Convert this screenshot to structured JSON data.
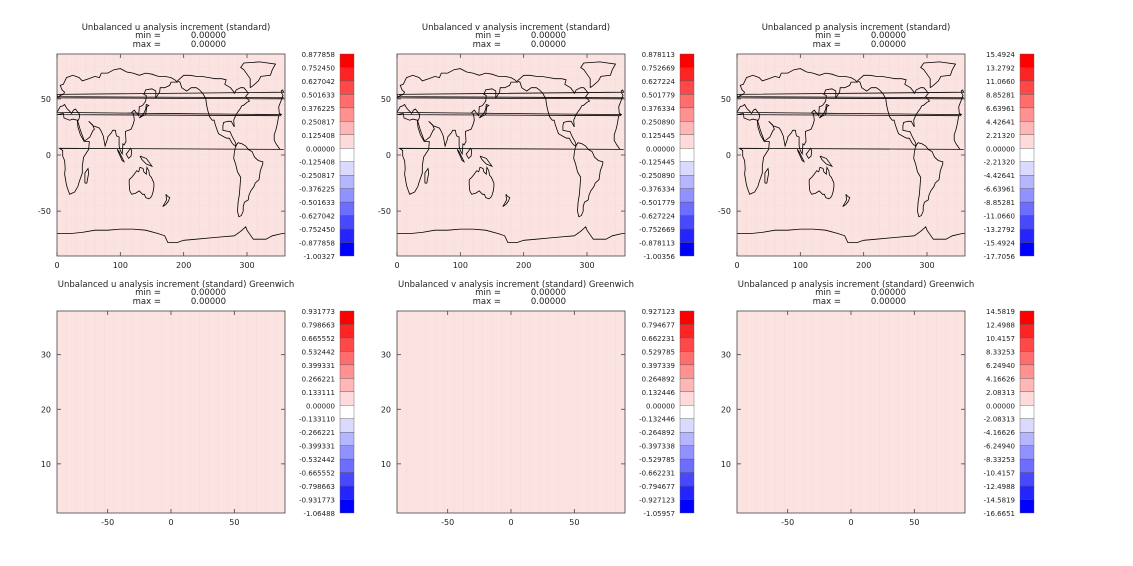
{
  "chart_data": [
    {
      "type": "heatmap",
      "title": "Unbalanced u analysis increment (standard)",
      "stats": {
        "min_label": "min =",
        "min_value": "0.00000",
        "max_label": "max =",
        "max_value": "0.00000"
      },
      "xlim": [
        0,
        360
      ],
      "ylim": [
        -90,
        90
      ],
      "xticks": [
        "0",
        "100",
        "200",
        "300"
      ],
      "xtick_values": [
        0,
        100,
        200,
        300
      ],
      "yticks": [
        "-50",
        "0",
        "50"
      ],
      "ytick_values": [
        -50,
        0,
        50
      ],
      "map": "world-coastlines",
      "fill_color": "#fbe3e1",
      "colorbar": [
        "0.877858",
        "0.752450",
        "0.627042",
        "0.501633",
        "0.376225",
        "0.250817",
        "0.125408",
        "0.00000",
        "-0.125408",
        "-0.250817",
        "-0.376225",
        "-0.501633",
        "-0.627042",
        "-0.752450",
        "-0.877858",
        "-1.00327"
      ]
    },
    {
      "type": "heatmap",
      "title": "Unbalanced v analysis increment (standard)",
      "stats": {
        "min_label": "min =",
        "min_value": "0.00000",
        "max_label": "max =",
        "max_value": "0.00000"
      },
      "xlim": [
        0,
        360
      ],
      "ylim": [
        -90,
        90
      ],
      "xticks": [
        "0",
        "100",
        "200",
        "300"
      ],
      "xtick_values": [
        0,
        100,
        200,
        300
      ],
      "yticks": [
        "-50",
        "0",
        "50"
      ],
      "ytick_values": [
        -50,
        0,
        50
      ],
      "map": "world-coastlines",
      "fill_color": "#fbe3e1",
      "colorbar": [
        "0.878113",
        "0.752669",
        "0.627224",
        "0.501779",
        "0.376334",
        "0.250890",
        "0.125445",
        "0.00000",
        "-0.125445",
        "-0.250890",
        "-0.376334",
        "-0.501779",
        "-0.627224",
        "-0.752669",
        "-0.878113",
        "-1.00356"
      ]
    },
    {
      "type": "heatmap",
      "title": "Unbalanced p analysis increment (standard)",
      "stats": {
        "min_label": "min =",
        "min_value": "0.00000",
        "max_label": "max =",
        "max_value": "0.00000"
      },
      "xlim": [
        0,
        360
      ],
      "ylim": [
        -90,
        90
      ],
      "xticks": [
        "0",
        "100",
        "200",
        "300"
      ],
      "xtick_values": [
        0,
        100,
        200,
        300
      ],
      "yticks": [
        "-50",
        "0",
        "50"
      ],
      "ytick_values": [
        -50,
        0,
        50
      ],
      "map": "world-coastlines",
      "fill_color": "#fbe3e1",
      "colorbar": [
        "15.4924",
        "13.2792",
        "11.0660",
        "8.85281",
        "6.63961",
        "4.42641",
        "2.21320",
        "0.00000",
        "-2.21320",
        "-4.42641",
        "-6.63961",
        "-8.85281",
        "-11.0660",
        "-13.2792",
        "-15.4924",
        "-17.7056"
      ]
    },
    {
      "type": "heatmap",
      "title": "Unbalanced u analysis increment (standard) Greenwich",
      "stats": {
        "min_label": "min =",
        "min_value": "0.00000",
        "max_label": "max =",
        "max_value": "0.00000"
      },
      "xlim": [
        -90,
        90
      ],
      "ylim": [
        1,
        38
      ],
      "xticks": [
        "-50",
        "0",
        "50"
      ],
      "xtick_values": [
        -50,
        0,
        50
      ],
      "yticks": [
        "10",
        "20",
        "30"
      ],
      "ytick_values": [
        10,
        20,
        30
      ],
      "map": "none",
      "fill_color": "#fbe3e1",
      "colorbar": [
        "0.931773",
        "0.798663",
        "0.665552",
        "0.532442",
        "0.399331",
        "0.266221",
        "0.133111",
        "0.00000",
        "-0.133110",
        "-0.266221",
        "-0.399331",
        "-0.532442",
        "-0.665552",
        "-0.798663",
        "-0.931773",
        "-1.06488"
      ]
    },
    {
      "type": "heatmap",
      "title": "Unbalanced v analysis increment (standard) Greenwich",
      "stats": {
        "min_label": "min =",
        "min_value": "0.00000",
        "max_label": "max =",
        "max_value": "0.00000"
      },
      "xlim": [
        -90,
        90
      ],
      "ylim": [
        1,
        38
      ],
      "xticks": [
        "-50",
        "0",
        "50"
      ],
      "xtick_values": [
        -50,
        0,
        50
      ],
      "yticks": [
        "10",
        "20",
        "30"
      ],
      "ytick_values": [
        10,
        20,
        30
      ],
      "map": "none",
      "fill_color": "#fbe3e1",
      "colorbar": [
        "0.927123",
        "0.794677",
        "0.662231",
        "0.529785",
        "0.397339",
        "0.264892",
        "0.132446",
        "0.00000",
        "-0.132446",
        "-0.264892",
        "-0.397338",
        "-0.529785",
        "-0.662231",
        "-0.794677",
        "-0.927123",
        "-1.05957"
      ]
    },
    {
      "type": "heatmap",
      "title": "Unbalanced p analysis increment (standard) Greenwich",
      "stats": {
        "min_label": "min =",
        "min_value": "0.00000",
        "max_label": "max =",
        "max_value": "0.00000"
      },
      "xlim": [
        -90,
        90
      ],
      "ylim": [
        1,
        38
      ],
      "xticks": [
        "-50",
        "0",
        "50"
      ],
      "xtick_values": [
        -50,
        0,
        50
      ],
      "yticks": [
        "10",
        "20",
        "30"
      ],
      "ytick_values": [
        10,
        20,
        30
      ],
      "map": "none",
      "fill_color": "#fbe3e1",
      "colorbar": [
        "14.5819",
        "12.4988",
        "10.4157",
        "8.33253",
        "6.24940",
        "4.16626",
        "2.08313",
        "0.00000",
        "-2.08313",
        "-4.16626",
        "-6.24940",
        "-8.33253",
        "-10.4157",
        "-12.4988",
        "-14.5819",
        "-16.6651"
      ]
    }
  ],
  "colorbar_colors": [
    "#ff0000",
    "#ff2424",
    "#ff4848",
    "#ff6d6d",
    "#ff9191",
    "#ffb6b6",
    "#ffdada",
    "#ffffff",
    "#dadaff",
    "#b6b6ff",
    "#9191ff",
    "#6d6dff",
    "#4848ff",
    "#2424ff",
    "#0000ff"
  ],
  "coastline_color": "#000000"
}
